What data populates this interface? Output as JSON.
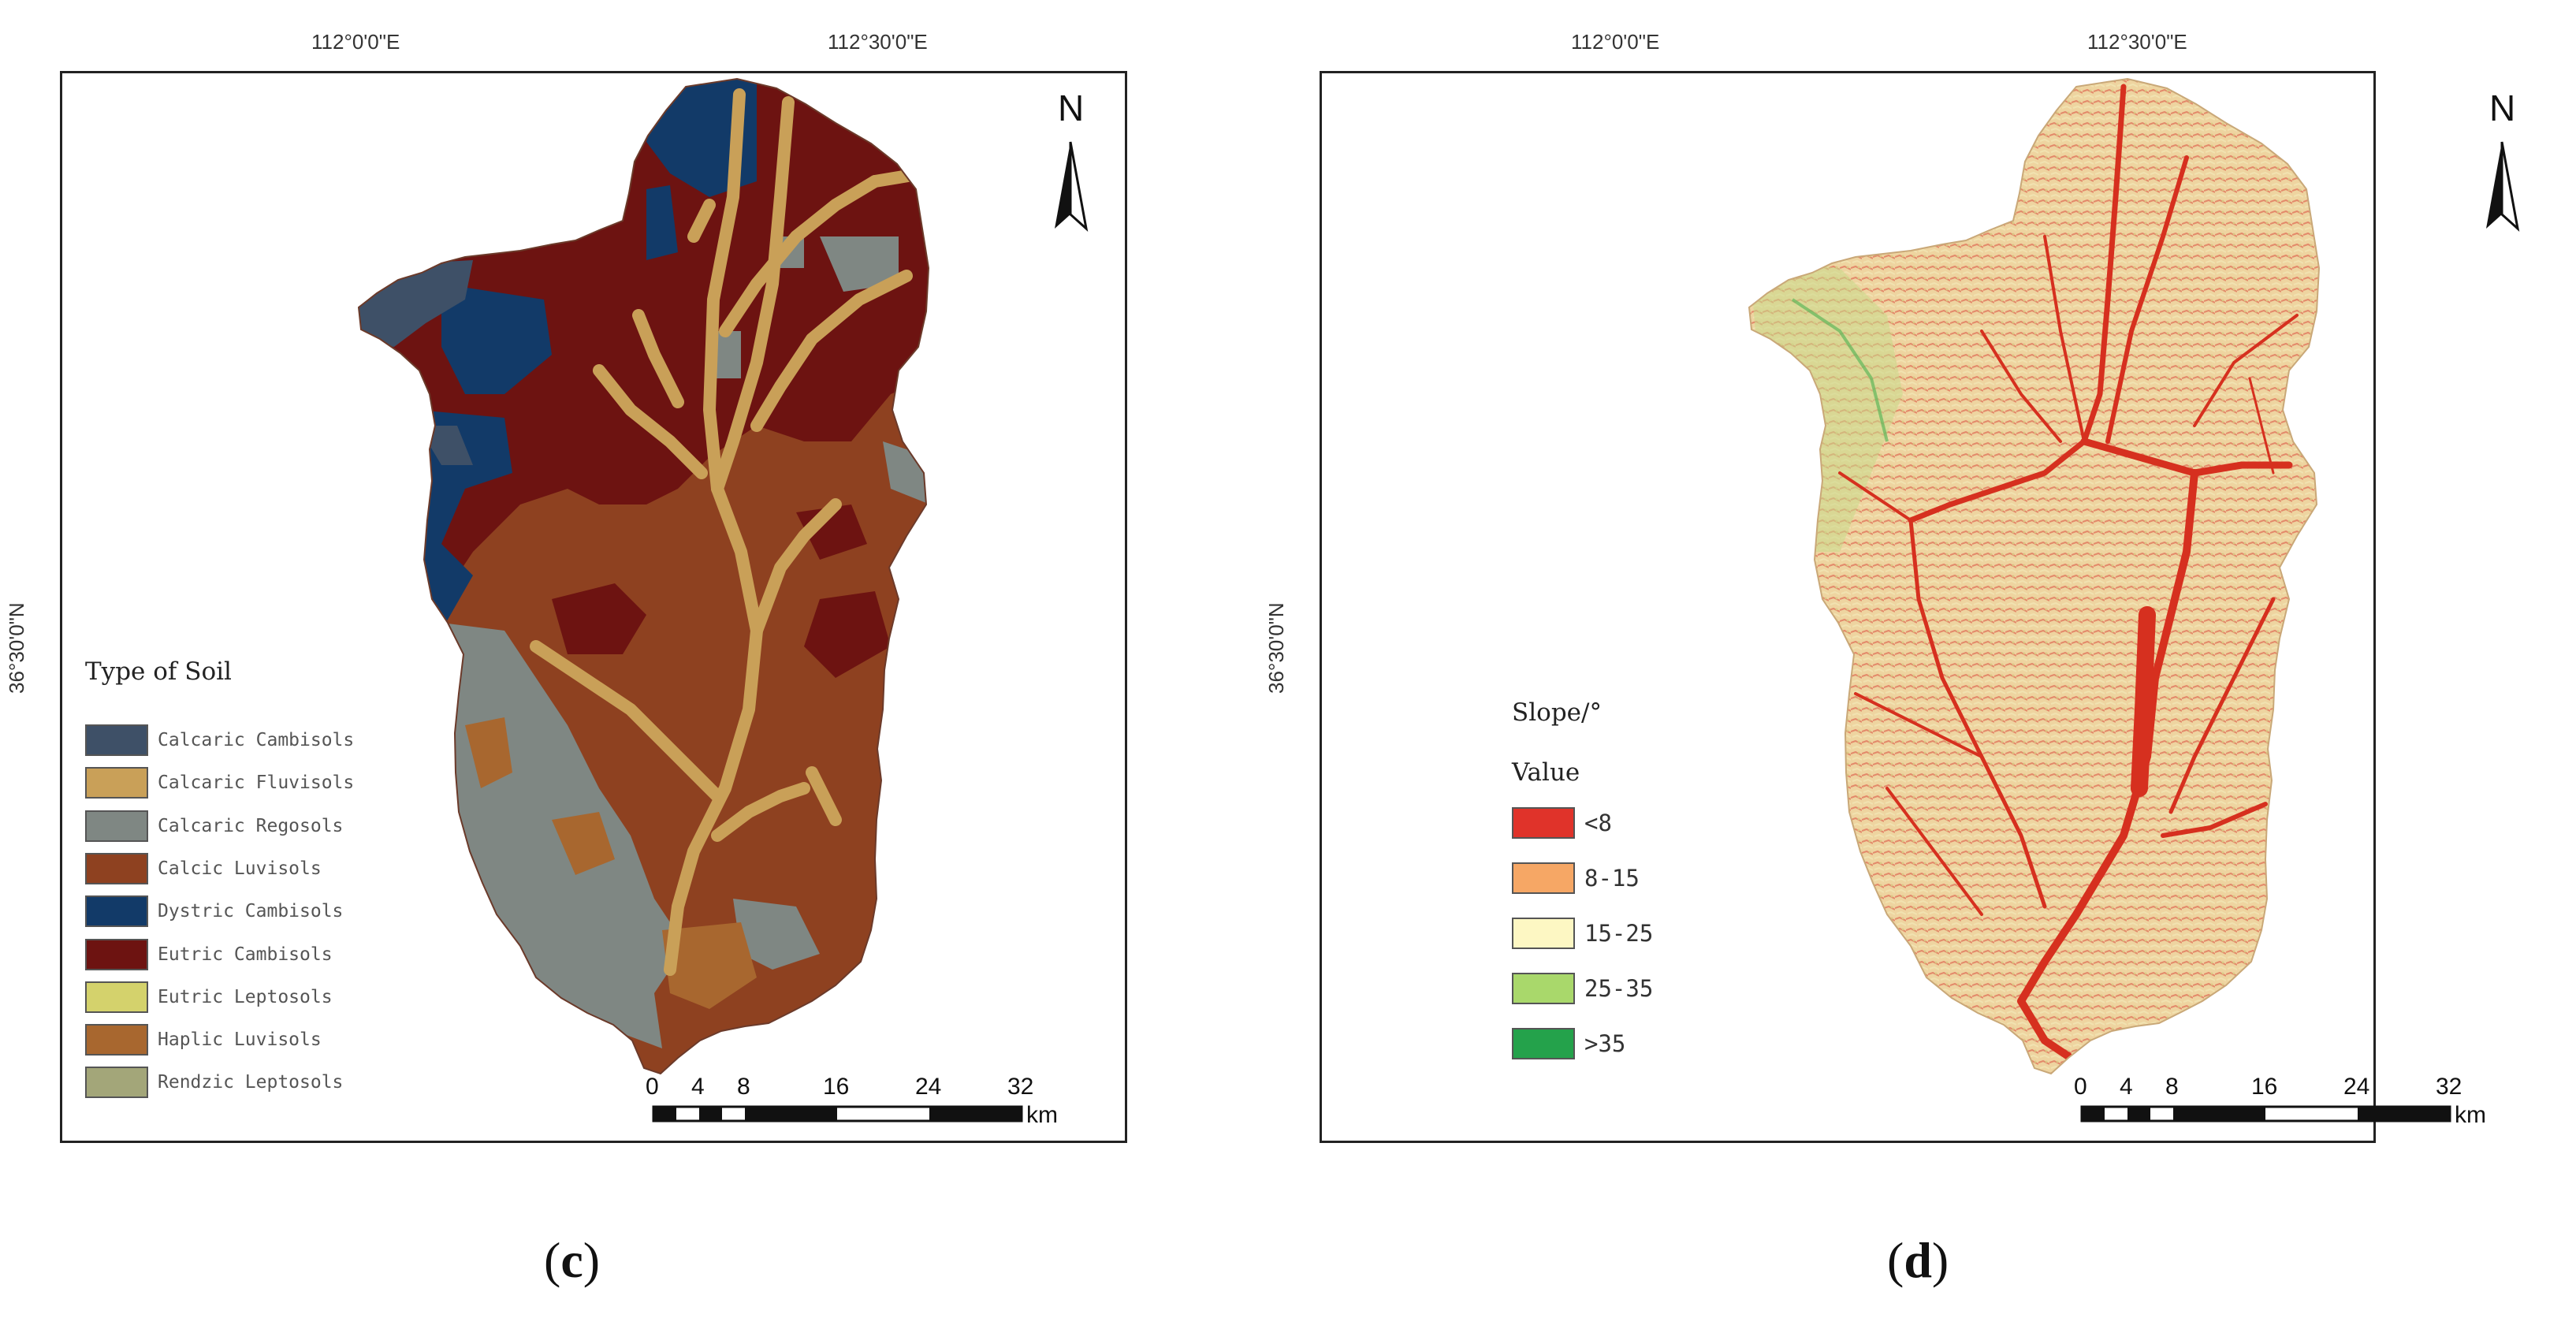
{
  "figure": {
    "panels": [
      {
        "id": "c",
        "caption_open": "(",
        "caption_letter": "c",
        "caption_close": ")",
        "longitude_ticks": [
          "112°0'0\"E",
          "112°30'0\"E"
        ],
        "latitude_tick": "36°30'0\"N",
        "north_arrow": {
          "label": "N",
          "icon": "north-arrow-icon"
        },
        "scale_bar": {
          "labels": [
            "0",
            "4",
            "8",
            "16",
            "24",
            "32"
          ],
          "unit": "km"
        },
        "legend": {
          "title": "Type of Soil",
          "items": [
            {
              "label": "Calcaric Cambisols",
              "color": "#3e5067"
            },
            {
              "label": "Calcaric Fluvisols",
              "color": "#c9a058"
            },
            {
              "label": "Calcaric Regosols",
              "color": "#7f8783"
            },
            {
              "label": "Calcic Luvisols",
              "color": "#8e4120"
            },
            {
              "label": "Dystric Cambisols",
              "color": "#123a68"
            },
            {
              "label": "Eutric Cambisols",
              "color": "#6d1311"
            },
            {
              "label": "Eutric Leptosols",
              "color": "#d4d26c"
            },
            {
              "label": "Haplic Luvisols",
              "color": "#a8672f"
            },
            {
              "label": "Rendzic Leptosols",
              "color": "#a3a679"
            }
          ]
        }
      },
      {
        "id": "d",
        "caption_open": "(",
        "caption_letter": "d",
        "caption_close": ")",
        "longitude_ticks": [
          "112°0'0\"E",
          "112°30'0\"E"
        ],
        "latitude_tick": "36°30'0\"N",
        "north_arrow": {
          "label": "N",
          "icon": "north-arrow-icon"
        },
        "scale_bar": {
          "labels": [
            "0",
            "4",
            "8",
            "16",
            "24",
            "32"
          ],
          "unit": "km"
        },
        "legend": {
          "title": "Slope/°",
          "subtitle": "Value",
          "items": [
            {
              "label": "<8",
              "color": "#e0332a"
            },
            {
              "label": "8-15",
              "color": "#f6a765"
            },
            {
              "label": "15-25",
              "color": "#fdf7c3"
            },
            {
              "label": "25-35",
              "color": "#a9d86b"
            },
            {
              "label": ">35",
              "color": "#24a24b"
            }
          ]
        }
      }
    ]
  }
}
